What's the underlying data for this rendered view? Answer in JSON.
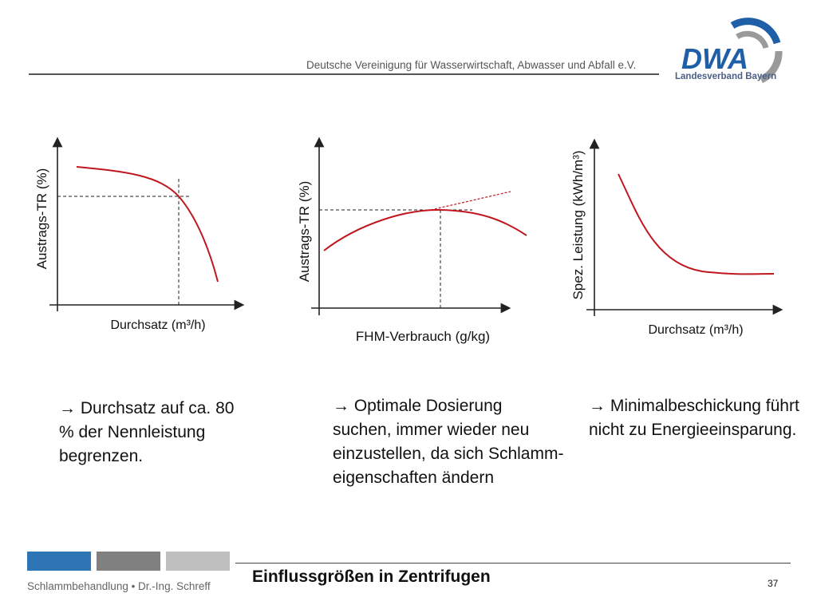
{
  "header": {
    "organization": "Deutsche Vereinigung für Wasserwirtschaft, Abwasser und Abfall e.V.",
    "logo_text": "DWA",
    "logo_subtitle": "Landesverband Bayern"
  },
  "charts": [
    {
      "ylabel": "Austrags-TR (%)",
      "xlabel": "Durchsatz (m³/h)"
    },
    {
      "ylabel": "Austrags-TR (%)",
      "xlabel": "FHM-Verbrauch (g/kg)"
    },
    {
      "ylabel": "Spez. Leistung (kWh/m³)",
      "xlabel": "Durchsatz (m³/h)"
    }
  ],
  "notes": [
    {
      "arrow": "→",
      "text": "Durchsatz auf ca. 80 % der Nennleistung begrenzen."
    },
    {
      "arrow": "→",
      "text": "Optimale Dosierung suchen, immer wieder neu einzustellen, da sich Schlamm-eigenschaften ändern"
    },
    {
      "arrow": "→",
      "text": "Minimalbeschickung führt nicht zu Energieeinsparung."
    }
  ],
  "footer": {
    "left": "Schlammbehandlung • Dr.-Ing. Schreff",
    "title": "Einflussgrößen in Zentrifugen",
    "page_number": "37"
  },
  "colors": {
    "curve": "#c0161e",
    "axis": "#222222",
    "accent_blue": "#2e75b6",
    "logo_blue": "#1f5fa8",
    "logo_gray": "#9a9a9a"
  }
}
